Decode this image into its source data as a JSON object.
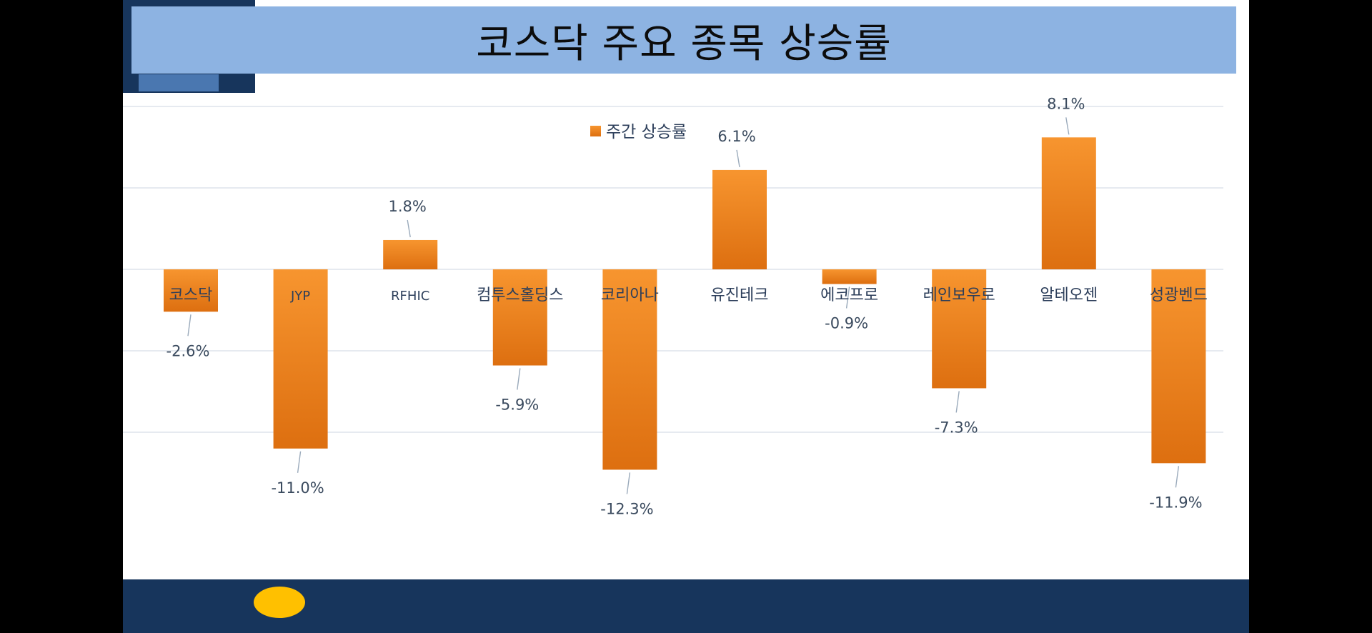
{
  "title": "코스닥 주요 종목 상승률",
  "chart_data": {
    "type": "bar",
    "title": "",
    "legend": {
      "placement": "top",
      "entries": [
        "주간 상승률"
      ]
    },
    "categories": [
      "코스닥",
      "JYP",
      "RFHIC",
      "컴투스홀딩스",
      "코리아나",
      "유진테크",
      "에코프로",
      "레인보우로",
      "알테오젠",
      "성광벤드"
    ],
    "series": [
      {
        "name": "주간 상승률",
        "values": [
          -2.6,
          -11.0,
          1.8,
          -5.9,
          -12.3,
          6.1,
          -0.9,
          -7.3,
          8.1,
          -11.9
        ],
        "labels": [
          "-2.6%",
          "-11.0%",
          "1.8%",
          "-5.9%",
          "-12.3%",
          "6.1%",
          "-0.9%",
          "-7.3%",
          "8.1%",
          "-11.9%"
        ]
      }
    ],
    "ylim": [
      -15,
      10
    ],
    "grid": true,
    "colors": {
      "bar_top": "#f7952f",
      "bar_bottom": "#dd6f10",
      "grid": "#d8dde6",
      "leader": "#9aaabb"
    }
  }
}
